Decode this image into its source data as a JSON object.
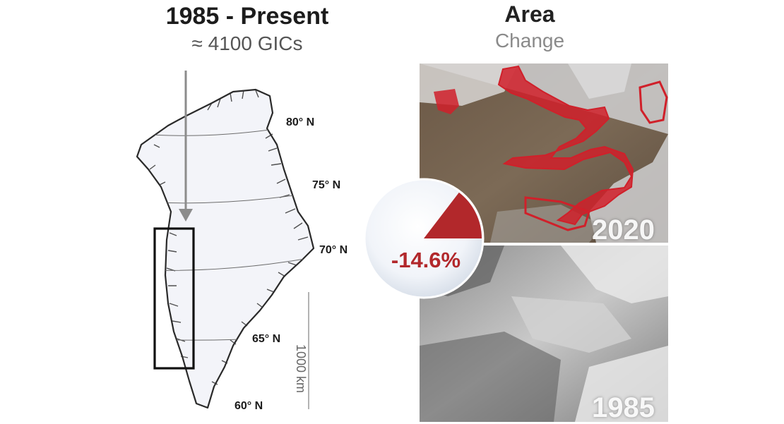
{
  "left_panel": {
    "title": "1985 - Present",
    "subtitle": "≈ 4100 GICs",
    "latitudes": [
      "80° N",
      "75° N",
      "70° N",
      "65° N",
      "60° N"
    ],
    "scale_label": "1000 km"
  },
  "right_panel": {
    "title": "Area",
    "subtitle": "Change",
    "change_percent": "-14.6%",
    "change_fraction": 0.146,
    "year_top": "2020",
    "year_bottom": "1985"
  },
  "colors": {
    "accent_red": "#b2282b",
    "outline_red": "#d0202a",
    "ice": "#f3f4f9"
  }
}
